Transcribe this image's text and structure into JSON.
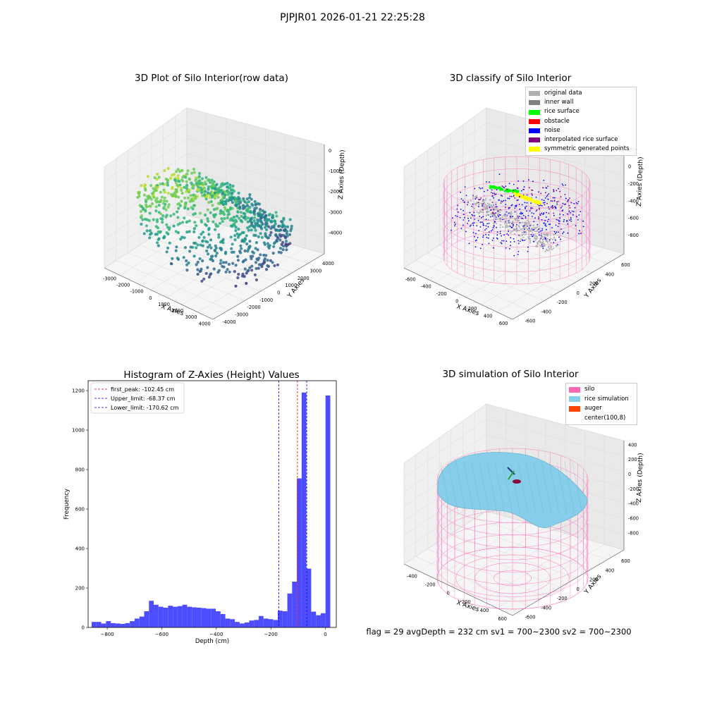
{
  "figure": {
    "suptitle": "PJPJR01 2026-01-21 22:25:28",
    "footer": "flag = 29  avgDepth = 232 cm  sv1 = 700~2300  sv2 = 700~2300"
  },
  "colors": {
    "histogram_bar": "#4d4dff",
    "first_peak_line": "#ff0000",
    "limit_lines": "#0000ff",
    "silo_wire": "#ff69b4",
    "rice_surface": "#87ceeb",
    "auger": "#ff4500",
    "original_data": "#b0b0b0",
    "inner_wall": "#808080",
    "rice_class": "#00ff00",
    "obstacle": "#ff0000",
    "noise": "#0000ff",
    "interpolated": "#800080",
    "symmetric": "#ffff00"
  },
  "panels": {
    "raw": {
      "title": "3D Plot of Silo Interior(row data)",
      "xlabel": "X Axies",
      "ylabel": "Y Axies",
      "zlabel": "Z Axies (Depth)",
      "xticks": [
        "-3000",
        "-2000",
        "-1000",
        "0",
        "1000",
        "2000",
        "3000",
        "4000"
      ],
      "yticks": [
        "-4000",
        "-3000",
        "-2000",
        "-1000",
        "0",
        "1000",
        "2000",
        "3000",
        "4000"
      ],
      "zticks": [
        "0",
        "-1000",
        "-2000",
        "-3000",
        "-4000"
      ]
    },
    "classify": {
      "title": "3D classify of Silo Interior",
      "xlabel": "X Axies",
      "ylabel": "Y Axies",
      "zlabel": "Z Axies (Depth)",
      "xticks": [
        "-600",
        "-400",
        "-200",
        "0",
        "200",
        "400",
        "600"
      ],
      "yticks": [
        "-600",
        "-400",
        "-200",
        "0",
        "200",
        "400",
        "600"
      ],
      "zticks": [
        "200",
        "0",
        "-200",
        "-400",
        "-600",
        "-800"
      ],
      "legend": [
        {
          "label": "original data",
          "color": "#b0b0b0"
        },
        {
          "label": "inner wall",
          "color": "#808080"
        },
        {
          "label": "rice surface",
          "color": "#00ff00"
        },
        {
          "label": "obstacle",
          "color": "#ff0000"
        },
        {
          "label": "noise",
          "color": "#0000ff"
        },
        {
          "label": "interpolated rice surface",
          "color": "#800080"
        },
        {
          "label": "symmetric generated points",
          "color": "#ffff00"
        }
      ]
    },
    "simulation": {
      "title": "3D simulation of Silo Interior",
      "xlabel": "X Axies",
      "ylabel": "Y Axies",
      "zlabel": "Z Axies (Depth)",
      "xticks": [
        "-400",
        "-200",
        "0",
        "200",
        "400",
        "600"
      ],
      "yticks": [
        "-600",
        "-400",
        "-200",
        "0",
        "200",
        "400",
        "600"
      ],
      "zticks": [
        "400",
        "200",
        "0",
        "-200",
        "-400",
        "-600",
        "-800"
      ],
      "legend": [
        {
          "label": "silo",
          "color": "#ff69b4"
        },
        {
          "label": "rice simulation",
          "color": "#87ceeb"
        },
        {
          "label": "auger",
          "color": "#ff4500"
        },
        {
          "label": "center(100,8)",
          "color": "#ffffff"
        }
      ]
    }
  },
  "chart_data": [
    {
      "type": "bar",
      "title": "Histogram of Z-Axies (Height) Values",
      "xlabel": "Depth (cm)",
      "ylabel": "Frequency",
      "xlim": [
        -870,
        40
      ],
      "ylim": [
        0,
        1250
      ],
      "xticks": [
        -800,
        -600,
        -400,
        -200,
        0
      ],
      "yticks": [
        0,
        200,
        400,
        600,
        800,
        1000,
        1200
      ],
      "bin_width": 17.5,
      "bin_start": -857,
      "values": [
        28,
        28,
        20,
        32,
        22,
        20,
        18,
        22,
        32,
        45,
        55,
        82,
        135,
        115,
        105,
        100,
        110,
        105,
        108,
        115,
        105,
        102,
        100,
        98,
        95,
        95,
        82,
        68,
        45,
        42,
        28,
        20,
        25,
        35,
        38,
        58,
        45,
        42,
        38,
        85,
        82,
        172,
        232,
        755,
        1190,
        298,
        80,
        62,
        72,
        1175
      ],
      "reference_lines": [
        {
          "label": "first_peak: -102.45 cm",
          "x": -102.45,
          "color": "#ff0000"
        },
        {
          "label": "Upper_limit: -68.37 cm",
          "x": -68.37,
          "color": "#0000ff"
        },
        {
          "label": "Lower_limit: -170.62 cm",
          "x": -170.62,
          "color": "#0000ff"
        }
      ],
      "legend_position": "upper left",
      "grid": false
    }
  ]
}
